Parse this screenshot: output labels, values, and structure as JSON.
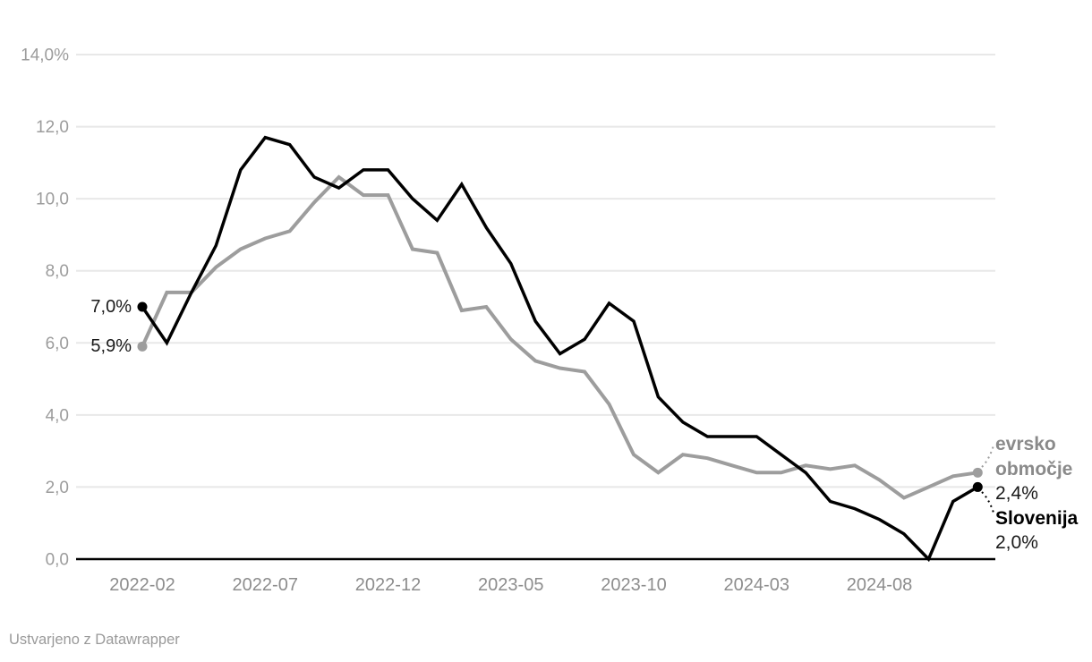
{
  "chart_data": {
    "type": "line",
    "x": [
      "2022-02",
      "2022-03",
      "2022-04",
      "2022-05",
      "2022-06",
      "2022-07",
      "2022-08",
      "2022-09",
      "2022-10",
      "2022-11",
      "2022-12",
      "2023-01",
      "2023-02",
      "2023-03",
      "2023-04",
      "2023-05",
      "2023-06",
      "2023-07",
      "2023-08",
      "2023-09",
      "2023-10",
      "2023-11",
      "2023-12",
      "2024-01",
      "2024-02",
      "2024-03",
      "2024-04",
      "2024-05",
      "2024-06",
      "2024-07",
      "2024-08",
      "2024-09",
      "2024-10",
      "2024-11",
      "2024-12"
    ],
    "series": [
      {
        "name": "Slovenija",
        "color": "#000000",
        "values": [
          7.0,
          6.0,
          7.4,
          8.7,
          10.8,
          11.7,
          11.5,
          10.6,
          10.3,
          10.8,
          10.8,
          10.0,
          9.4,
          10.4,
          9.2,
          8.2,
          6.6,
          5.7,
          6.1,
          7.1,
          6.6,
          4.5,
          3.8,
          3.4,
          3.4,
          3.4,
          2.9,
          2.4,
          1.6,
          1.4,
          1.1,
          0.7,
          0.0,
          1.6,
          2.0
        ]
      },
      {
        "name": "evrsko območje",
        "color": "#9d9d9d",
        "values": [
          5.9,
          7.4,
          7.4,
          8.1,
          8.6,
          8.9,
          9.1,
          9.9,
          10.6,
          10.1,
          10.1,
          8.6,
          8.5,
          6.9,
          7.0,
          6.1,
          5.5,
          5.3,
          5.2,
          4.3,
          2.9,
          2.4,
          2.9,
          2.8,
          2.6,
          2.4,
          2.4,
          2.6,
          2.5,
          2.6,
          2.2,
          1.7,
          2.0,
          2.3,
          2.4
        ]
      }
    ],
    "title": "",
    "xlabel": "",
    "ylabel": "",
    "ylim": [
      0,
      14
    ],
    "y_ticks": [
      0,
      2,
      4,
      6,
      8,
      10,
      12,
      14
    ],
    "y_tick_labels": [
      "0,0",
      "2,0",
      "4,0",
      "6,0",
      "8,0",
      "10,0",
      "12,0",
      "14,0%"
    ],
    "x_tick_indices": [
      0,
      5,
      10,
      15,
      20,
      25,
      30
    ],
    "x_tick_labels": [
      "2022-02",
      "2022-07",
      "2022-12",
      "2023-05",
      "2023-10",
      "2024-03",
      "2024-08"
    ],
    "grid": "horizontal",
    "legend_position": "line-end-labels"
  },
  "annotations": {
    "start_labels": [
      {
        "series": "Slovenija",
        "text": "7,0%"
      },
      {
        "series": "evrsko območje",
        "text": "5,9%"
      }
    ],
    "end_labels": [
      {
        "series": "evrsko območje",
        "name_lines": [
          "evrsko",
          "območje"
        ],
        "value": "2,4%"
      },
      {
        "series": "Slovenija",
        "name_lines": [
          "Slovenija"
        ],
        "value": "2,0%"
      }
    ]
  },
  "footer": {
    "credit": "Ustvarjeno z Datawrapper"
  },
  "colors": {
    "slovenija_line": "#000000",
    "evrsko_obmocje_line": "#9d9d9d",
    "gridline": "#e8e8e8",
    "zero_axis": "#000000",
    "y_tick_text": "#9c9c9c",
    "x_tick_text": "#8d8d8d",
    "end_label_gray_text": "#8a8a8a",
    "value_text": "#1a1a1a",
    "credit_text": "#9a9a9a",
    "background": "#ffffff"
  }
}
